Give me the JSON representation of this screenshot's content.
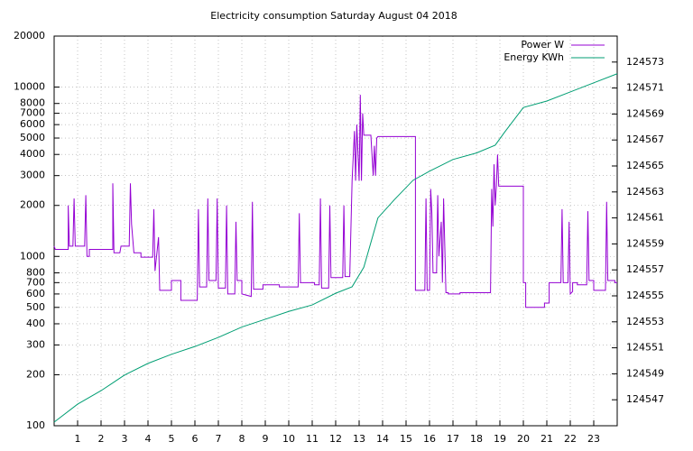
{
  "chart_data": {
    "type": "line",
    "title": "Electricity consumption Saturday August 04 2018",
    "xlim": [
      0,
      24
    ],
    "xticks": [
      1,
      2,
      3,
      4,
      5,
      6,
      7,
      8,
      9,
      10,
      11,
      12,
      13,
      14,
      15,
      16,
      17,
      18,
      19,
      20,
      21,
      22,
      23
    ],
    "ylim": [
      100,
      20000
    ],
    "yscale": "log",
    "yticks": [
      100,
      200,
      300,
      400,
      500,
      600,
      700,
      800,
      1000,
      2000,
      3000,
      4000,
      5000,
      6000,
      7000,
      8000,
      10000,
      20000
    ],
    "y2lim": [
      124545,
      124575
    ],
    "y2ticks": [
      124547,
      124549,
      124551,
      124553,
      124555,
      124557,
      124559,
      124561,
      124563,
      124565,
      124567,
      124569,
      124571,
      124573
    ],
    "grid": true,
    "legend": "top-right",
    "series": [
      {
        "name": "Power W",
        "color": "#9400d3",
        "x": [
          0,
          0.05,
          0.6,
          0.6,
          0.65,
          0.8,
          0.85,
          0.9,
          1.3,
          1.35,
          1.4,
          1.5,
          1.5,
          2.5,
          2.5,
          2.55,
          2.8,
          2.85,
          3.2,
          3.25,
          3.3,
          3.4,
          3.7,
          3.7,
          4.2,
          4.25,
          4.3,
          4.45,
          4.5,
          5,
          5,
          5.4,
          5.4,
          6.1,
          6.15,
          6.2,
          6.5,
          6.55,
          6.6,
          6.9,
          6.95,
          7,
          7.3,
          7.35,
          7.4,
          7.7,
          7.75,
          7.8,
          8,
          8,
          8.4,
          8.45,
          8.5,
          8.9,
          8.9,
          9.6,
          9.6,
          10.4,
          10.45,
          10.5,
          11.1,
          11.1,
          11.3,
          11.35,
          11.4,
          11.7,
          11.75,
          11.8,
          12.3,
          12.35,
          12.4,
          12.6,
          12.7,
          12.8,
          12.85,
          12.9,
          13,
          13.05,
          13.1,
          13.15,
          13.2,
          13.5,
          13.6,
          13.65,
          13.7,
          13.75,
          13.8,
          15.4,
          15.4,
          15.8,
          15.85,
          15.9,
          16,
          16.05,
          16.1,
          16.15,
          16.3,
          16.35,
          16.4,
          16.5,
          16.55,
          16.6,
          16.7,
          16.8,
          16.8,
          17.3,
          17.3,
          18.6,
          18.65,
          18.7,
          18.75,
          18.8,
          18.85,
          18.9,
          18.95,
          20,
          20,
          20.1,
          20.1,
          20.9,
          20.9,
          21.1,
          21.1,
          21.6,
          21.65,
          21.7,
          21.9,
          21.95,
          22,
          22.1,
          22.1,
          22.3,
          22.3,
          22.7,
          22.75,
          22.8,
          23,
          23,
          23.5,
          23.55,
          23.6,
          23.9,
          23.9,
          24
        ],
        "values": [
          1150,
          1100,
          1100,
          2000,
          1150,
          1150,
          2200,
          1150,
          1150,
          2300,
          1000,
          1000,
          1100,
          1100,
          2700,
          1050,
          1050,
          1150,
          1150,
          2700,
          1550,
          1050,
          1050,
          990,
          990,
          1900,
          820,
          1300,
          630,
          630,
          720,
          720,
          550,
          550,
          1900,
          660,
          660,
          2200,
          720,
          720,
          2200,
          650,
          650,
          2000,
          600,
          600,
          1600,
          720,
          720,
          600,
          580,
          2100,
          640,
          640,
          680,
          680,
          660,
          660,
          1800,
          700,
          700,
          680,
          680,
          2200,
          650,
          650,
          2000,
          750,
          750,
          2000,
          760,
          760,
          2800,
          5500,
          2800,
          6000,
          2800,
          9000,
          2800,
          7000,
          5200,
          5200,
          3000,
          4500,
          3000,
          5000,
          5100,
          5100,
          630,
          630,
          2200,
          630,
          630,
          2500,
          1800,
          800,
          800,
          2300,
          1000,
          1600,
          700,
          2200,
          610,
          610,
          600,
          600,
          610,
          610,
          2500,
          1500,
          3500,
          2000,
          2600,
          4000,
          2600,
          2600,
          700,
          700,
          500,
          500,
          530,
          530,
          700,
          700,
          1900,
          700,
          700,
          1600,
          600,
          620,
          700,
          700,
          680,
          680,
          1850,
          720,
          720,
          630,
          630,
          2100,
          720,
          720,
          700,
          700
        ]
      },
      {
        "name": "Energy KWh",
        "color": "#009e73",
        "axis": "y2",
        "x": [
          0,
          1,
          2,
          3,
          4,
          5,
          6,
          7,
          8,
          9,
          10,
          11,
          12,
          12.7,
          13.2,
          13.8,
          14.5,
          15.3,
          16,
          17,
          18,
          18.8,
          19.2,
          20,
          21,
          22,
          23,
          24
        ],
        "values": [
          124545.28,
          124546.66,
          124547.7,
          124548.9,
          124549.8,
          124550.5,
          124551.1,
          124551.8,
          124552.6,
          124553.2,
          124553.8,
          124554.3,
          124555.2,
          124555.7,
          124557.2,
          124561.0,
          124562.4,
          124563.9,
          124564.6,
          124565.5,
          124566.0,
          124566.6,
          124567.6,
          124569.5,
          124570.0,
          124570.7,
          124571.4,
          124572.1
        ]
      }
    ]
  }
}
